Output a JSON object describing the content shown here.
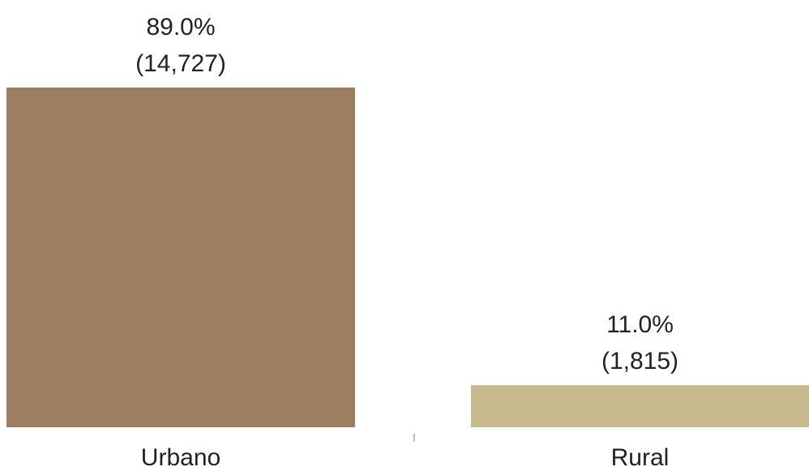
{
  "chart_data": {
    "type": "bar",
    "categories": [
      "Urbano",
      "Rural"
    ],
    "values": [
      89.0,
      11.0
    ],
    "value_labels": [
      "89.0%",
      "11.0%"
    ],
    "counts": [
      14727,
      1815
    ],
    "count_labels": [
      "(14,727)",
      "(1,815)"
    ],
    "colors": [
      "#9c7f60",
      "#c8b88e"
    ]
  }
}
